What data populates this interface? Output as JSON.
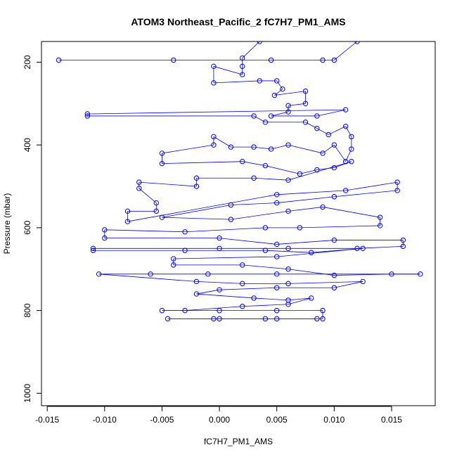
{
  "chart_data": {
    "type": "scatter",
    "title": "ATOM3 Northeast_Pacific_2 fC7H7_PM1_AMS",
    "xlabel": "fC7H7_PM1_AMS",
    "ylabel": "Pressure (mbar)",
    "xlim": [
      -0.0155,
      0.0188
    ],
    "ylim": [
      1030,
      150
    ],
    "y_reversed": true,
    "x_ticks": [
      -0.015,
      -0.01,
      -0.005,
      0.0,
      0.005,
      0.01,
      0.015
    ],
    "x_tick_labels": [
      "-0.015",
      "-0.010",
      "-0.005",
      "0.000",
      "0.005",
      "0.010",
      "0.015"
    ],
    "y_ticks": [
      200,
      400,
      600,
      800,
      1000
    ],
    "y_tick_labels": [
      "200",
      "400",
      "600",
      "800",
      "1000"
    ],
    "series_color": "#0000ff",
    "marker": "open-circle",
    "connected": true,
    "grid": false,
    "points": [
      [
        -0.014,
        195
      ],
      [
        -0.004,
        195
      ],
      [
        0.0045,
        195
      ],
      [
        0.009,
        195
      ],
      [
        0.01,
        195
      ],
      [
        0.012,
        150
      ],
      [
        0.0035,
        150
      ],
      [
        0.002,
        190
      ],
      [
        0.002,
        210
      ],
      [
        0.002,
        230
      ],
      [
        -0.0005,
        210
      ],
      [
        -0.0005,
        250
      ],
      [
        0.0035,
        245
      ],
      [
        0.005,
        245
      ],
      [
        0.0055,
        265
      ],
      [
        0.0048,
        280
      ],
      [
        0.0075,
        270
      ],
      [
        0.0075,
        300
      ],
      [
        0.006,
        305
      ],
      [
        0.006,
        320
      ],
      [
        0.0045,
        330
      ],
      [
        0.0085,
        330
      ],
      [
        0.011,
        315
      ],
      [
        -0.0115,
        325
      ],
      [
        -0.0115,
        330
      ],
      [
        0.003,
        330
      ],
      [
        0.004,
        345
      ],
      [
        0.0075,
        345
      ],
      [
        0.0085,
        360
      ],
      [
        0.0095,
        375
      ],
      [
        0.011,
        355
      ],
      [
        0.0115,
        380
      ],
      [
        0.0115,
        410
      ],
      [
        0.011,
        440
      ],
      [
        0.01,
        400
      ],
      [
        0.009,
        420
      ],
      [
        0.006,
        400
      ],
      [
        0.0045,
        410
      ],
      [
        0.003,
        405
      ],
      [
        0.001,
        405
      ],
      [
        -0.0005,
        380
      ],
      [
        -0.0005,
        400
      ],
      [
        -0.005,
        420
      ],
      [
        -0.005,
        445
      ],
      [
        0.002,
        440
      ],
      [
        0.004,
        450
      ],
      [
        0.007,
        470
      ],
      [
        0.0085,
        460
      ],
      [
        0.01,
        455
      ],
      [
        0.0115,
        440
      ],
      [
        0.006,
        485
      ],
      [
        0.003,
        480
      ],
      [
        -0.002,
        480
      ],
      [
        -0.002,
        500
      ],
      [
        -0.007,
        490
      ],
      [
        -0.007,
        505
      ],
      [
        -0.0055,
        540
      ],
      [
        -0.0055,
        560
      ],
      [
        -0.008,
        560
      ],
      [
        -0.008,
        585
      ],
      [
        0.005,
        520
      ],
      [
        0.011,
        510
      ],
      [
        0.0155,
        490
      ],
      [
        0.0155,
        510
      ],
      [
        0.01,
        525
      ],
      [
        0.005,
        540
      ],
      [
        0.001,
        545
      ],
      [
        -0.005,
        575
      ],
      [
        0.001,
        580
      ],
      [
        0.006,
        560
      ],
      [
        0.009,
        550
      ],
      [
        0.014,
        575
      ],
      [
        0.014,
        595
      ],
      [
        0.007,
        600
      ],
      [
        0.004,
        600
      ],
      [
        -0.003,
        610
      ],
      [
        -0.01,
        605
      ],
      [
        -0.01,
        625
      ],
      [
        0.0,
        625
      ],
      [
        0.005,
        640
      ],
      [
        0.01,
        630
      ],
      [
        0.016,
        630
      ],
      [
        0.016,
        645
      ],
      [
        0.012,
        650
      ],
      [
        0.006,
        650
      ],
      [
        0.0,
        650
      ],
      [
        -0.011,
        650
      ],
      [
        -0.011,
        655
      ],
      [
        -0.003,
        655
      ],
      [
        0.004,
        655
      ],
      [
        0.008,
        660
      ],
      [
        0.0125,
        650
      ],
      [
        0.005,
        670
      ],
      [
        -0.004,
        675
      ],
      [
        -0.004,
        690
      ],
      [
        0.002,
        690
      ],
      [
        0.006,
        700
      ],
      [
        0.01,
        715
      ],
      [
        0.015,
        712
      ],
      [
        0.0175,
        712
      ],
      [
        0.005,
        712
      ],
      [
        -0.001,
        712
      ],
      [
        -0.006,
        712
      ],
      [
        -0.0105,
        712
      ],
      [
        -0.002,
        730
      ],
      [
        0.002,
        735
      ],
      [
        0.006,
        735
      ],
      [
        0.0125,
        730
      ],
      [
        0.01,
        745
      ],
      [
        0.005,
        745
      ],
      [
        0.0,
        750
      ],
      [
        -0.002,
        760
      ],
      [
        0.003,
        770
      ],
      [
        0.006,
        775
      ],
      [
        0.008,
        770
      ],
      [
        0.006,
        785
      ],
      [
        0.002,
        790
      ],
      [
        -0.003,
        800
      ],
      [
        -0.005,
        800
      ],
      [
        0.0,
        800
      ],
      [
        0.005,
        800
      ],
      [
        0.009,
        800
      ],
      [
        0.009,
        820
      ],
      [
        0.005,
        820
      ],
      [
        0.0,
        820
      ],
      [
        -0.0045,
        820
      ],
      [
        -0.0005,
        820
      ],
      [
        0.004,
        820
      ],
      [
        0.0085,
        820
      ]
    ]
  }
}
